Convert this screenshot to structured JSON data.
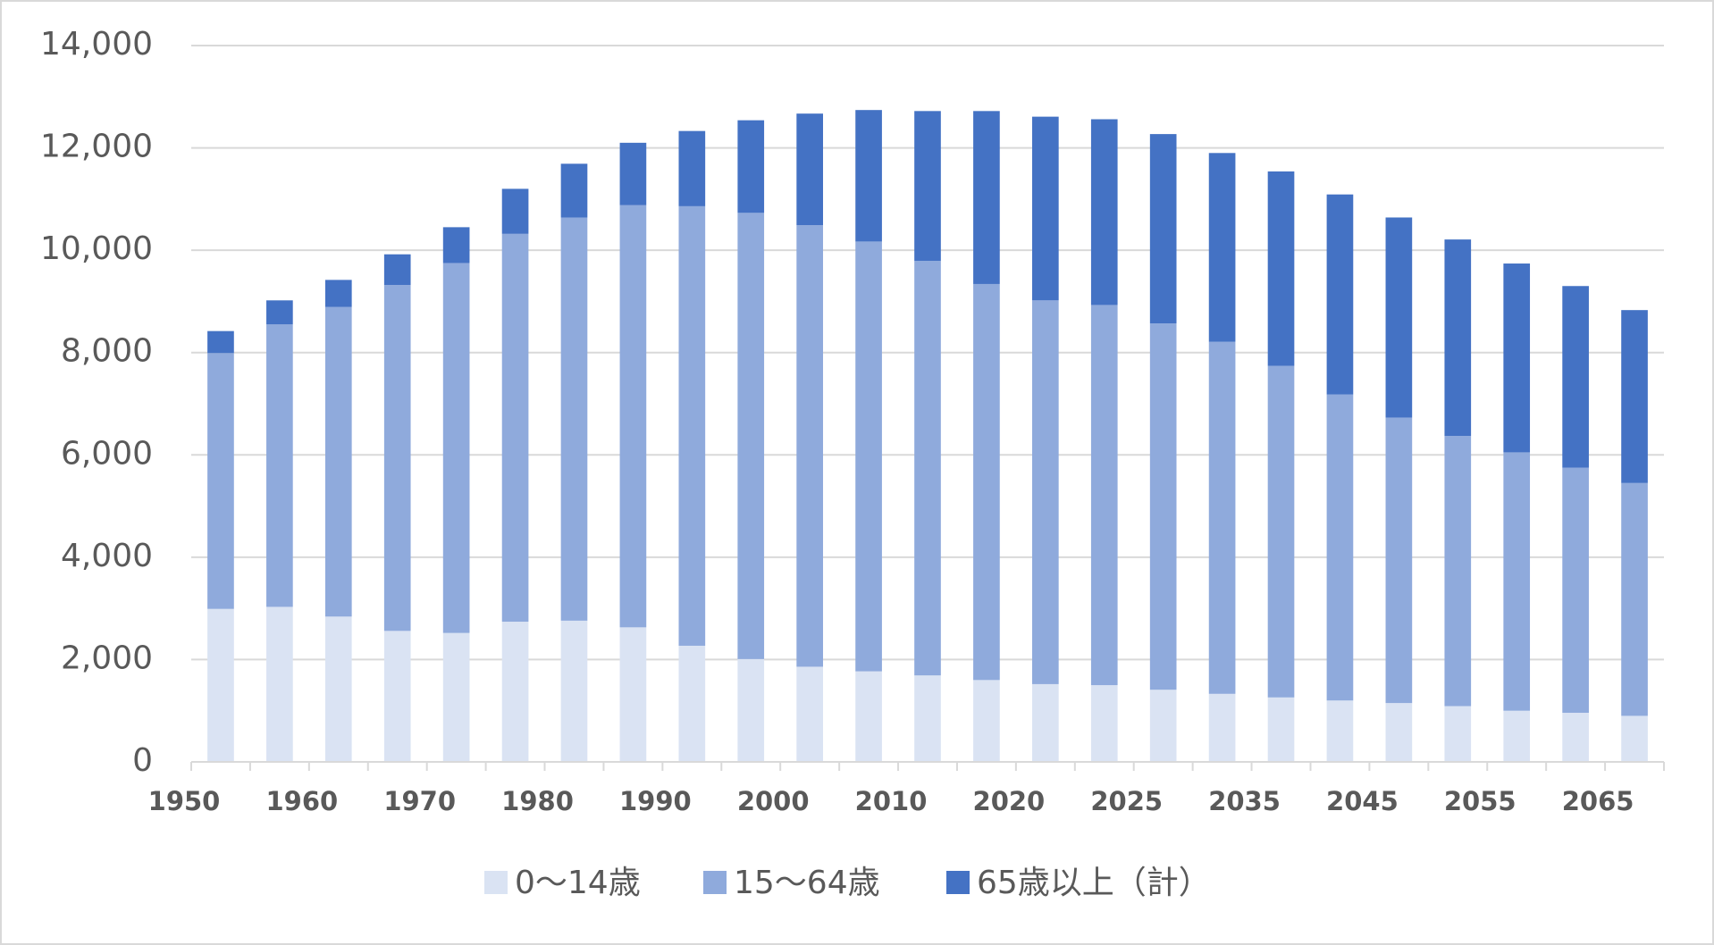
{
  "chart_data": {
    "type": "stacked_bar",
    "categories": [
      "1950",
      null,
      "1960",
      null,
      "1970",
      null,
      "1980",
      null,
      "1990",
      null,
      "2000",
      null,
      "2010",
      null,
      "2020",
      null,
      "2025",
      null,
      "2035",
      null,
      "2045",
      null,
      "2055",
      null,
      "2065"
    ],
    "series": [
      {
        "name": "0～14歳",
        "color": "#dae3f3",
        "values": [
          2990,
          3030,
          2840,
          2560,
          2520,
          2740,
          2760,
          2630,
          2270,
          2010,
          1860,
          1770,
          1690,
          1600,
          1520,
          1500,
          1410,
          1330,
          1260,
          1200,
          1150,
          1090,
          1000,
          960,
          900
        ]
      },
      {
        "name": "15～64歳",
        "color": "#8faadc",
        "values": [
          5000,
          5520,
          6050,
          6760,
          7230,
          7580,
          7880,
          8250,
          8590,
          8720,
          8630,
          8400,
          8100,
          7740,
          7500,
          7430,
          7160,
          6880,
          6480,
          5980,
          5580,
          5280,
          5050,
          4790,
          4550
        ]
      },
      {
        "name": "65歳以上（計）",
        "color": "#4472c4",
        "values": [
          430,
          470,
          530,
          600,
          700,
          880,
          1050,
          1220,
          1470,
          1810,
          2180,
          2570,
          2930,
          3380,
          3590,
          3630,
          3700,
          3690,
          3800,
          3910,
          3910,
          3840,
          3690,
          3550,
          3380
        ]
      }
    ],
    "ylim": [
      0,
      14000
    ],
    "yticks": [
      0,
      {
        "value": 2000,
        "label": "2,000"
      },
      {
        "value": 4000,
        "label": "4,000"
      },
      {
        "value": 6000,
        "label": "6,000"
      },
      {
        "value": 8000,
        "label": "8,000"
      },
      {
        "value": 10000,
        "label": "10,000"
      },
      {
        "value": 12000,
        "label": "12,000"
      },
      {
        "value": 14000,
        "label": "14,000"
      }
    ],
    "grid": true,
    "legend": "bottom"
  }
}
